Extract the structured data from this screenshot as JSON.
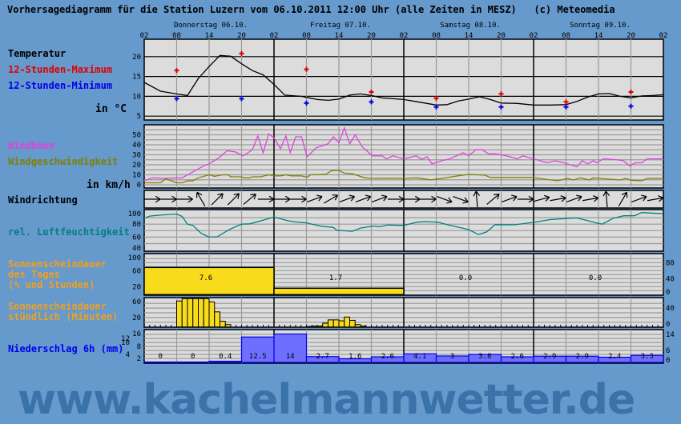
{
  "title": "Vorhersagediagramm für die Station Luzern vom 06.10.2011 12:00 Uhr (alle Zeiten in MESZ)   (c) Meteomedia",
  "watermark": "www.kachelmannwetter.de",
  "colors": {
    "background": "#6699cc",
    "panel": "#dcdcdc",
    "max": "#e00000",
    "min": "#0000ee",
    "gust": "#dd44dd",
    "wind": "#808000",
    "humidity": "#008080",
    "sunshine": "#f8dc1c",
    "sun_label": "#f0a020",
    "precip": "#6f6fff",
    "precip_label": "#0000ee"
  },
  "labels": {
    "temperature": "Temperatur",
    "max": "12-Stunden-Maximum",
    "min": "12-Stunden-Minimum",
    "temp_unit": "in °C",
    "gusts": "Windböen",
    "wind_speed": "Windgeschwindigkeit",
    "wind_unit": "in km/h",
    "wind_direction": "Windrichtung",
    "humidity": "rel. Luftfeuchtigkeit",
    "sun_daily_1": "Sonnenscheindauer",
    "sun_daily_2": "des Tages",
    "sun_daily_3": "(% und Stunden)",
    "sun_hourly_1": "Sonnenscheindauer",
    "sun_hourly_2": "stündlich (Minuten)",
    "precip": "Niederschlag 6h (mm)"
  },
  "chart_data": {
    "type": "line",
    "days": [
      "Donnerstag 06.10.",
      "Freitag 07.10.",
      "Samstag 08.10.",
      "Sonntag 09.10."
    ],
    "hour_ticks": [
      "02",
      "08",
      "14",
      "20",
      "02",
      "08",
      "14",
      "20",
      "02",
      "08",
      "14",
      "20",
      "02",
      "08",
      "14",
      "20",
      "02"
    ],
    "x_unit": "hours since 02:00 Thursday",
    "temperature": {
      "yticks": [
        "5",
        "10",
        "15",
        "20"
      ],
      "ylim": [
        4,
        24
      ],
      "curve": [
        [
          0,
          13.5
        ],
        [
          3,
          11.3
        ],
        [
          6,
          10.6
        ],
        [
          8,
          10.2
        ],
        [
          10,
          14.5
        ],
        [
          12,
          17.5
        ],
        [
          14,
          20.3
        ],
        [
          16,
          20.1
        ],
        [
          18,
          18.2
        ],
        [
          20,
          16.5
        ],
        [
          22,
          15.4
        ],
        [
          24,
          13
        ],
        [
          26,
          10.3
        ],
        [
          29,
          10
        ],
        [
          32,
          9.2
        ],
        [
          34,
          9
        ],
        [
          36,
          9.3
        ],
        [
          38,
          10.3
        ],
        [
          40,
          10.6
        ],
        [
          42,
          10.2
        ],
        [
          44,
          9.6
        ],
        [
          46,
          9.4
        ],
        [
          48,
          9.2
        ],
        [
          51,
          8.5
        ],
        [
          54,
          7.8
        ],
        [
          56,
          7.9
        ],
        [
          58,
          8.8
        ],
        [
          60,
          9.3
        ],
        [
          62,
          9.9
        ],
        [
          64,
          9.2
        ],
        [
          66,
          8.3
        ],
        [
          69,
          8.2
        ],
        [
          72,
          7.8
        ],
        [
          75,
          7.8
        ],
        [
          78,
          7.9
        ],
        [
          80,
          8.7
        ],
        [
          82,
          9.8
        ],
        [
          84,
          10.6
        ],
        [
          86,
          10.7
        ],
        [
          88,
          10
        ],
        [
          90,
          9.6
        ],
        [
          92,
          10.1
        ],
        [
          94,
          10.2
        ],
        [
          96,
          10.4
        ]
      ],
      "max": [
        [
          6,
          16.5
        ],
        [
          18,
          20.8
        ],
        [
          30,
          16.8
        ],
        [
          42,
          11.1
        ],
        [
          54,
          9.5
        ],
        [
          66,
          10.6
        ],
        [
          78,
          8.6
        ],
        [
          90,
          11.1
        ]
      ],
      "min": [
        [
          6,
          9.4
        ],
        [
          18,
          9.4
        ],
        [
          30,
          8.3
        ],
        [
          42,
          8.6
        ],
        [
          54,
          7.3
        ],
        [
          66,
          7.3
        ],
        [
          78,
          7.3
        ],
        [
          90,
          7.5
        ]
      ]
    },
    "wind": {
      "yticks": [
        "0",
        "10",
        "20",
        "30",
        "40",
        "50"
      ],
      "ylim": [
        0,
        60
      ],
      "gusts": [
        [
          0,
          4
        ],
        [
          1.5,
          7
        ],
        [
          4,
          6.5
        ],
        [
          6,
          7
        ],
        [
          7,
          7
        ],
        [
          9,
          13
        ],
        [
          11,
          19
        ],
        [
          12,
          21
        ],
        [
          13.8,
          27
        ],
        [
          15.3,
          34
        ],
        [
          16.8,
          33
        ],
        [
          18.3,
          29
        ],
        [
          20,
          35
        ],
        [
          21,
          49
        ],
        [
          22,
          32
        ],
        [
          23,
          51
        ],
        [
          24,
          47
        ],
        [
          25.2,
          36
        ],
        [
          26.2,
          49
        ],
        [
          27,
          32
        ],
        [
          28,
          48
        ],
        [
          29.1,
          48
        ],
        [
          30.1,
          28
        ],
        [
          31.8,
          37
        ],
        [
          34,
          41
        ],
        [
          35,
          48
        ],
        [
          36,
          42
        ],
        [
          37,
          57
        ],
        [
          38,
          41
        ],
        [
          39,
          50
        ],
        [
          40.3,
          38
        ],
        [
          42.2,
          29
        ],
        [
          44,
          29
        ],
        [
          44.8,
          26
        ],
        [
          46,
          29
        ],
        [
          48,
          26
        ],
        [
          50.3,
          29
        ],
        [
          51.3,
          25.6
        ],
        [
          52.3,
          28
        ],
        [
          53.2,
          21
        ],
        [
          55,
          24
        ],
        [
          56.5,
          26
        ],
        [
          59,
          32
        ],
        [
          60,
          29
        ],
        [
          61.3,
          35
        ],
        [
          62.5,
          35
        ],
        [
          63.7,
          31
        ],
        [
          65,
          31
        ],
        [
          67,
          29
        ],
        [
          69,
          26
        ],
        [
          70,
          29
        ],
        [
          72,
          26
        ],
        [
          74.5,
          22
        ],
        [
          76,
          24
        ],
        [
          77.6,
          22
        ],
        [
          80,
          18
        ],
        [
          81,
          24
        ],
        [
          82,
          21
        ],
        [
          83,
          24
        ],
        [
          83.7,
          22
        ],
        [
          84.9,
          26
        ],
        [
          87.6,
          25
        ],
        [
          88.6,
          24
        ],
        [
          89.8,
          19
        ],
        [
          90.8,
          22
        ],
        [
          92,
          22
        ],
        [
          93,
          26
        ],
        [
          96,
          26
        ]
      ],
      "speed": [
        [
          0,
          2
        ],
        [
          3,
          2
        ],
        [
          4,
          6
        ],
        [
          6,
          2
        ],
        [
          7,
          2
        ],
        [
          8,
          4
        ],
        [
          9,
          4
        ],
        [
          10,
          7
        ],
        [
          12,
          10
        ],
        [
          13,
          8.5
        ],
        [
          14.5,
          10
        ],
        [
          15.5,
          10
        ],
        [
          16,
          8
        ],
        [
          18,
          8
        ],
        [
          18.3,
          7
        ],
        [
          19.5,
          7
        ],
        [
          20,
          8
        ],
        [
          21.5,
          8
        ],
        [
          23,
          10
        ],
        [
          24,
          9
        ],
        [
          25.2,
          9
        ],
        [
          26.2,
          10
        ],
        [
          27.2,
          9
        ],
        [
          29,
          9
        ],
        [
          30.1,
          7.5
        ],
        [
          30.8,
          10
        ],
        [
          33.6,
          10.5
        ],
        [
          34.6,
          14
        ],
        [
          36,
          14.4
        ],
        [
          37,
          11.7
        ],
        [
          38.5,
          11
        ],
        [
          40.8,
          7
        ],
        [
          42,
          6.5
        ],
        [
          45,
          6.7
        ],
        [
          48,
          6.5
        ],
        [
          50.4,
          7
        ],
        [
          53,
          5
        ],
        [
          55.4,
          6.7
        ],
        [
          58,
          9
        ],
        [
          60,
          10.4
        ],
        [
          63,
          9.6
        ],
        [
          64,
          7.4
        ],
        [
          72,
          7.4
        ],
        [
          73,
          6.4
        ],
        [
          76.4,
          4
        ],
        [
          78.3,
          6.4
        ],
        [
          79.3,
          4.8
        ],
        [
          82.3,
          4.8
        ],
        [
          80.7,
          7
        ],
        [
          83,
          7
        ],
        [
          84.4,
          6.4
        ],
        [
          88,
          4.8
        ],
        [
          89,
          6.4
        ],
        [
          90,
          4.6
        ],
        [
          92,
          4
        ],
        [
          93,
          6.4
        ],
        [
          96,
          6.4
        ]
      ]
    },
    "wind_direction_arrow_heading_deg": [
      90,
      90,
      90,
      330,
      45,
      45,
      50,
      90,
      90,
      90,
      70,
      60,
      70,
      70,
      70,
      90,
      90,
      90,
      110,
      110,
      355,
      50,
      70,
      90,
      75,
      80,
      70,
      80,
      355,
      30,
      70,
      80
    ],
    "humidity": {
      "yticks": [
        "40",
        "60",
        "80",
        "100"
      ],
      "ylim": [
        40,
        100
      ],
      "values": [
        [
          0,
          89
        ],
        [
          1,
          92.5
        ],
        [
          3,
          94
        ],
        [
          6,
          95.7
        ],
        [
          7,
          92
        ],
        [
          8,
          80
        ],
        [
          9,
          78
        ],
        [
          10.5,
          66
        ],
        [
          12,
          60
        ],
        [
          13.5,
          60.5
        ],
        [
          15.8,
          72
        ],
        [
          18,
          80
        ],
        [
          19.5,
          80.5
        ],
        [
          22,
          86
        ],
        [
          24,
          91
        ],
        [
          26.7,
          85
        ],
        [
          28,
          83.5
        ],
        [
          30,
          82
        ],
        [
          32.6,
          77
        ],
        [
          35,
          75
        ],
        [
          35.6,
          70.5
        ],
        [
          38.5,
          69
        ],
        [
          40,
          74
        ],
        [
          42.2,
          77
        ],
        [
          43.6,
          76
        ],
        [
          45,
          78.6
        ],
        [
          48,
          78
        ],
        [
          50.4,
          83
        ],
        [
          51.8,
          84
        ],
        [
          54.3,
          83
        ],
        [
          56.3,
          78.6
        ],
        [
          60,
          71.6
        ],
        [
          61.8,
          64
        ],
        [
          63.3,
          68
        ],
        [
          64.9,
          79.3
        ],
        [
          68.4,
          79
        ],
        [
          72,
          82.7
        ],
        [
          75,
          87
        ],
        [
          79.9,
          89.6
        ],
        [
          82,
          85.5
        ],
        [
          83.7,
          81.6
        ],
        [
          84.7,
          80
        ],
        [
          86.8,
          89.4
        ],
        [
          88.7,
          93
        ],
        [
          90.7,
          93
        ],
        [
          92,
          97.9
        ],
        [
          96,
          96
        ]
      ]
    },
    "sunshine_daily": {
      "yticks": [
        "0",
        "20",
        "40",
        "60",
        "80",
        "100"
      ],
      "ylim": [
        0,
        100
      ],
      "percent": [
        68,
        16,
        0,
        0
      ],
      "hours": [
        "7.6",
        "1.7",
        "0.0",
        "0.0"
      ]
    },
    "sunshine_hourly": {
      "yticks": [
        "0",
        "20",
        "40",
        "60"
      ],
      "ylim": [
        0,
        60
      ],
      "minutes": [
        [
          6,
          55
        ],
        [
          7,
          60
        ],
        [
          8,
          60
        ],
        [
          9,
          60
        ],
        [
          10,
          60
        ],
        [
          11,
          60
        ],
        [
          12,
          53
        ],
        [
          13,
          32
        ],
        [
          14,
          12
        ],
        [
          15,
          5
        ],
        [
          30,
          1
        ],
        [
          31,
          2
        ],
        [
          32,
          2
        ],
        [
          33,
          8
        ],
        [
          34,
          15
        ],
        [
          35,
          15
        ],
        [
          36,
          13
        ],
        [
          37,
          21
        ],
        [
          38,
          14
        ],
        [
          39,
          5
        ],
        [
          40,
          2
        ]
      ]
    },
    "precip_6h": {
      "yticks": [
        "0",
        "2",
        "4",
        "6",
        "8",
        "10",
        "12",
        "14",
        "16"
      ],
      "ylim": [
        0,
        16
      ],
      "values": [
        0,
        0,
        0.4,
        12.5,
        14,
        2.7,
        1.6,
        2.6,
        4.1,
        3,
        3.8,
        2.6,
        2.9,
        2.9,
        2.4,
        3.3
      ],
      "labels": [
        "0",
        "0",
        "0.4",
        "12.5",
        "14",
        "2.7",
        "1.6",
        "2.6",
        "4.1",
        "3",
        "3.8",
        "2.6",
        "2.9",
        "2.9",
        "2.4",
        "3.3"
      ]
    }
  }
}
